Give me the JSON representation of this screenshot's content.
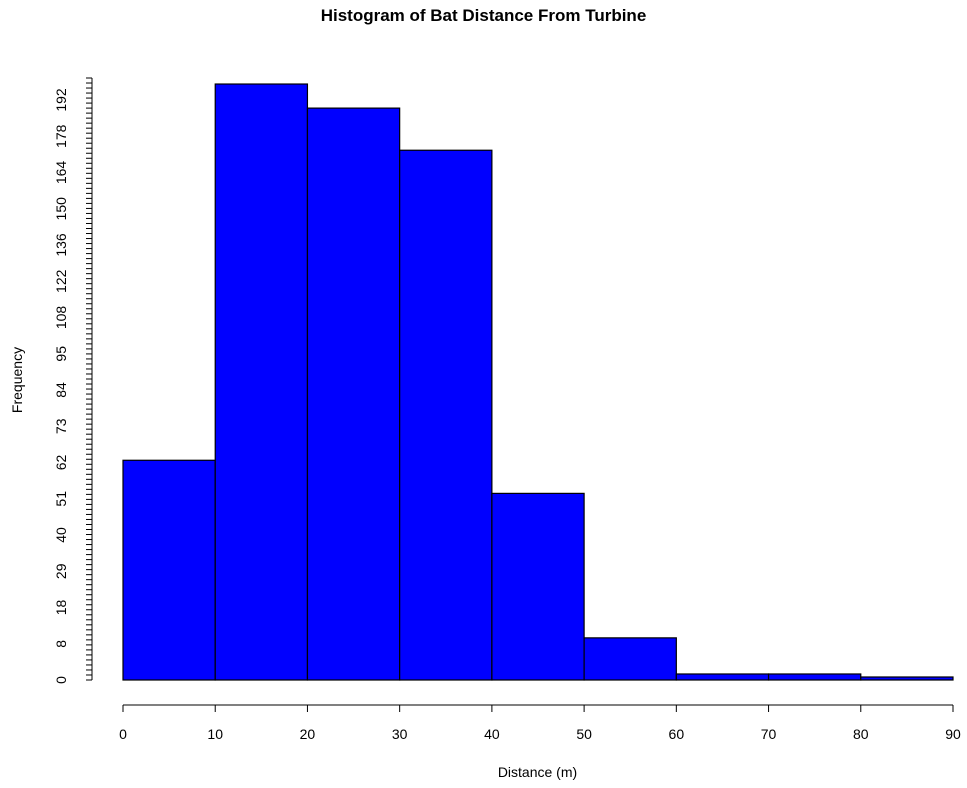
{
  "chart_data": {
    "type": "bar",
    "title": "Histogram of Bat Distance From Turbine",
    "xlabel": "Distance (m)",
    "ylabel": "Frequency",
    "bins": [
      {
        "from": 0,
        "to": 10,
        "value": 73
      },
      {
        "from": 10,
        "to": 20,
        "value": 198
      },
      {
        "from": 20,
        "to": 30,
        "value": 190
      },
      {
        "from": 30,
        "to": 40,
        "value": 176
      },
      {
        "from": 40,
        "to": 50,
        "value": 62
      },
      {
        "from": 50,
        "to": 60,
        "value": 14
      },
      {
        "from": 60,
        "to": 70,
        "value": 2
      },
      {
        "from": 70,
        "to": 80,
        "value": 2
      },
      {
        "from": 80,
        "to": 90,
        "value": 1
      }
    ],
    "x_ticks": [
      "0",
      "10",
      "20",
      "30",
      "40",
      "50",
      "60",
      "70",
      "80",
      "90"
    ],
    "y_tick_labels": [
      "0",
      "8",
      "18",
      "29",
      "40",
      "51",
      "62",
      "73",
      "84",
      "95",
      "108",
      "122",
      "136",
      "150",
      "164",
      "178",
      "192"
    ],
    "xlim": [
      0,
      90
    ],
    "ylim": [
      0,
      200
    ],
    "bar_color": "#0000ff",
    "bar_edge_color": "#000000",
    "grid": false,
    "legend": "none"
  }
}
